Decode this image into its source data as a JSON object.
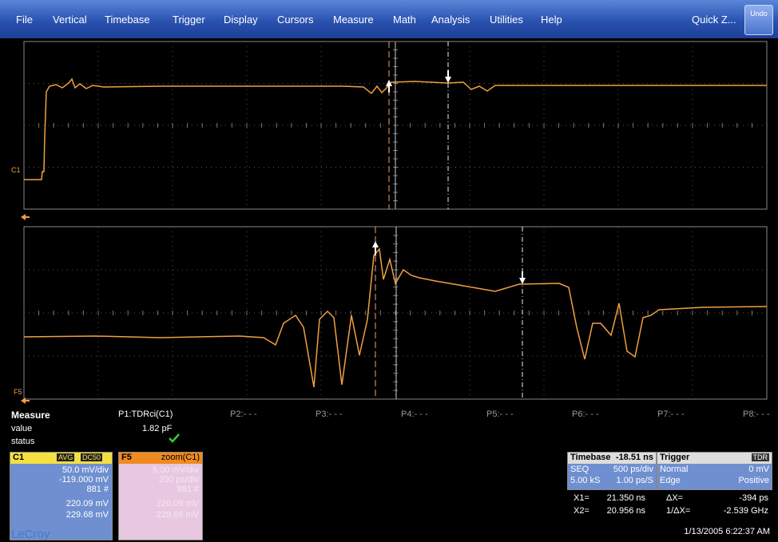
{
  "menu": {
    "items": [
      "File",
      "Vertical",
      "Timebase",
      "Trigger",
      "Display",
      "Cursors",
      "Measure",
      "Math",
      "Analysis",
      "Utilities",
      "Help"
    ],
    "quick_zoom": "Quick Z...",
    "undo": "Undo"
  },
  "grids": [
    {
      "label": "C1"
    },
    {
      "label": "F5"
    }
  ],
  "measure": {
    "title": "Measure",
    "params": [
      "P1:TDRci(C1)",
      "P2:- - -",
      "P3:- - -",
      "P4:- - -",
      "P5:- - -",
      "P6:- - -",
      "P7:- - -",
      "P8:- - -"
    ],
    "value_label": "value",
    "value": "1.82 pF",
    "status_label": "status"
  },
  "channels": [
    {
      "name": "C1",
      "badges": [
        "AVG",
        "DC50"
      ],
      "lines": [
        "50.0 mV/div",
        "-119.000 mV",
        "881 #",
        "220.09 mV",
        "229.68 mV"
      ]
    },
    {
      "name": "F5",
      "source": "zoom(C1)",
      "lines": [
        "5.00 mV/div",
        "200 ps/div",
        "881 #",
        "220.09 mV",
        "229.68 mV"
      ]
    }
  ],
  "timebase": {
    "title": "Timebase",
    "value": "-18.51 ns",
    "rows": [
      [
        "SEQ",
        "500 ps/div"
      ],
      [
        "5.00 kS",
        "1.00 ps/S"
      ]
    ]
  },
  "trigger": {
    "title": "Trigger",
    "value": "TDR",
    "rows": [
      [
        "Normal",
        "0 mV"
      ],
      [
        "Edge",
        "Positive"
      ]
    ]
  },
  "cursors": [
    [
      "X1=",
      "21.350 ns",
      "ΔX=",
      "-394 ps"
    ],
    [
      "X2=",
      "20.956 ns",
      "1/ΔX=",
      "-2.539 GHz"
    ]
  ],
  "brand": "LeCroy",
  "timestamp": "1/13/2005 6:22:37 AM"
}
